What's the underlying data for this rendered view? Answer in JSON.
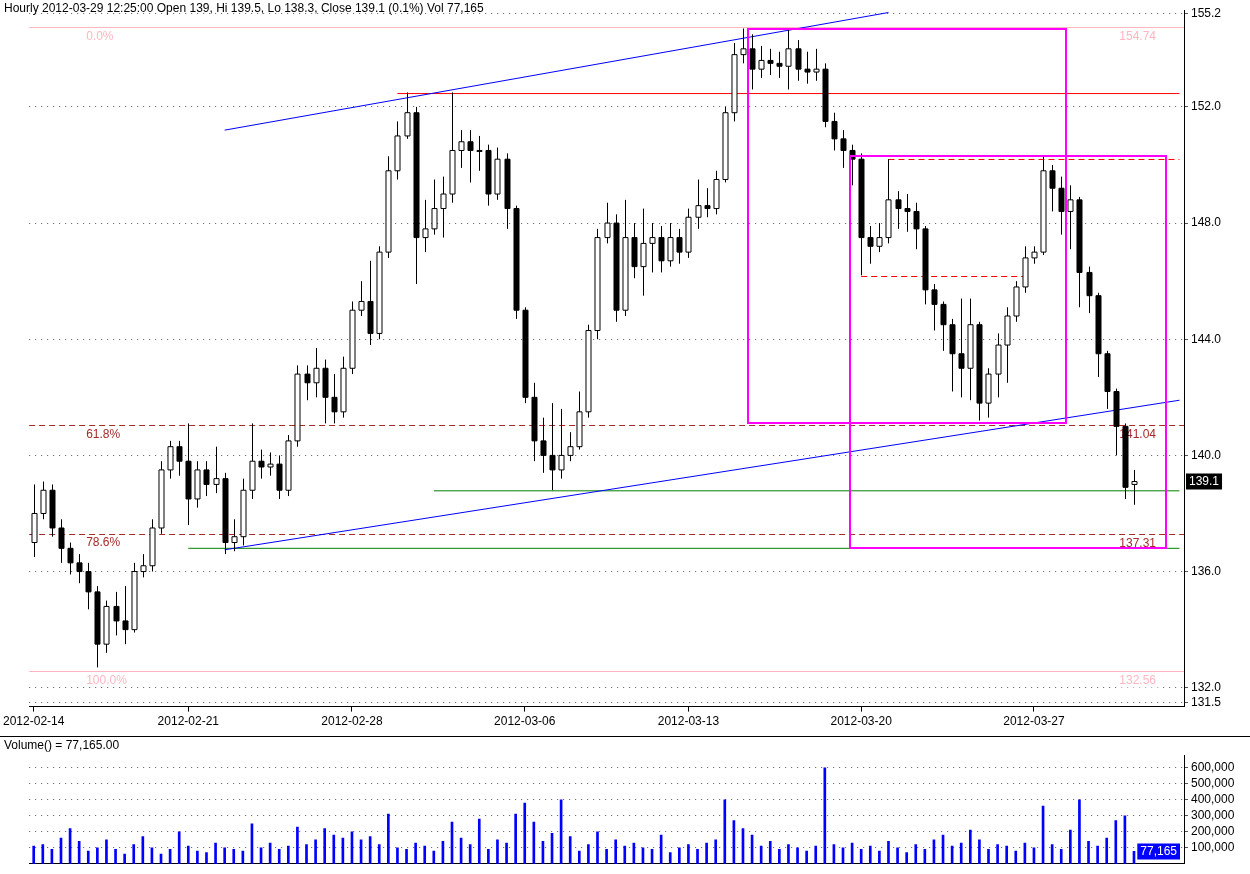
{
  "chart_data": [
    {
      "type": "candlestick",
      "title": "Hourly 2012-03-29 12:25:00 Open 139, Hi 139.5, Lo 138.3, Close 139.1 (0.1%) Vol 77,165",
      "categories": [
        "2012-02-14",
        null,
        null,
        null,
        null,
        null,
        null,
        null,
        null,
        null,
        null,
        null,
        null,
        null,
        null,
        null,
        null,
        "2012-02-21",
        null,
        null,
        null,
        null,
        null,
        null,
        null,
        null,
        null,
        null,
        null,
        null,
        null,
        null,
        null,
        null,
        null,
        "2012-02-28",
        null,
        null,
        null,
        null,
        null,
        null,
        null,
        null,
        null,
        null,
        null,
        null,
        null,
        null,
        null,
        null,
        null,
        null,
        "2012-03-06",
        null,
        null,
        null,
        null,
        null,
        null,
        null,
        null,
        null,
        null,
        null,
        null,
        null,
        null,
        null,
        null,
        null,
        "2012-03-13",
        null,
        null,
        null,
        null,
        null,
        null,
        null,
        null,
        null,
        null,
        null,
        null,
        null,
        null,
        null,
        null,
        null,
        null,
        "2012-03-20",
        null,
        null,
        null,
        null,
        null,
        null,
        null,
        null,
        null,
        null,
        null,
        null,
        null,
        null,
        null,
        null,
        null,
        null,
        "2012-03-27",
        null,
        null,
        null,
        null,
        null,
        null,
        null,
        null,
        null,
        null,
        null,
        null,
        null,
        null,
        null,
        null
      ],
      "ohlc": [
        [
          137.0,
          139.0,
          136.5,
          138.0
        ],
        [
          138.0,
          139.1,
          137.8,
          138.8
        ],
        [
          138.8,
          139.0,
          137.2,
          137.5
        ],
        [
          137.5,
          137.8,
          136.3,
          136.8
        ],
        [
          136.8,
          137.0,
          135.9,
          136.3
        ],
        [
          136.3,
          136.6,
          135.6,
          136.0
        ],
        [
          136.0,
          136.3,
          134.7,
          135.3
        ],
        [
          135.3,
          135.5,
          132.7,
          133.5
        ],
        [
          133.5,
          135.0,
          133.2,
          134.8
        ],
        [
          134.8,
          135.3,
          133.8,
          134.3
        ],
        [
          134.3,
          135.5,
          133.5,
          134.0
        ],
        [
          134.0,
          136.3,
          133.9,
          136.0
        ],
        [
          136.0,
          136.6,
          135.8,
          136.2
        ],
        [
          136.2,
          137.8,
          136.0,
          137.5
        ],
        [
          137.5,
          139.8,
          137.3,
          139.5
        ],
        [
          139.5,
          140.5,
          139.2,
          140.3
        ],
        [
          140.3,
          140.5,
          139.3,
          139.8
        ],
        [
          139.8,
          141.1,
          137.6,
          138.5
        ],
        [
          138.5,
          139.8,
          138.2,
          139.5
        ],
        [
          139.5,
          139.8,
          138.6,
          139.0
        ],
        [
          139.0,
          140.3,
          138.7,
          139.2
        ],
        [
          139.2,
          139.4,
          136.6,
          137.0
        ],
        [
          137.0,
          137.8,
          136.7,
          137.2
        ],
        [
          137.2,
          139.2,
          136.9,
          138.8
        ],
        [
          138.8,
          141.1,
          138.5,
          139.8
        ],
        [
          139.8,
          140.2,
          139.2,
          139.6
        ],
        [
          139.6,
          140.1,
          139.3,
          139.7
        ],
        [
          139.7,
          140.0,
          138.5,
          138.8
        ],
        [
          138.8,
          140.7,
          138.6,
          140.5
        ],
        [
          140.5,
          143.1,
          140.3,
          142.8
        ],
        [
          142.8,
          143.1,
          141.9,
          142.5
        ],
        [
          142.5,
          143.7,
          142.0,
          143.0
        ],
        [
          143.0,
          143.3,
          141.1,
          142.0
        ],
        [
          142.0,
          142.8,
          141.1,
          141.5
        ],
        [
          141.5,
          143.4,
          141.3,
          143.0
        ],
        [
          143.0,
          145.3,
          142.8,
          145.0
        ],
        [
          145.0,
          146.0,
          144.8,
          145.3
        ],
        [
          145.3,
          146.7,
          143.8,
          144.2
        ],
        [
          144.2,
          147.2,
          144.0,
          147.0
        ],
        [
          147.0,
          150.3,
          146.8,
          149.8
        ],
        [
          149.8,
          151.5,
          149.5,
          151.0
        ],
        [
          151.0,
          152.5,
          150.9,
          151.8
        ],
        [
          151.8,
          152.0,
          145.9,
          147.5
        ],
        [
          147.5,
          148.8,
          147.0,
          147.8
        ],
        [
          147.8,
          149.5,
          147.6,
          148.5
        ],
        [
          148.5,
          149.6,
          147.5,
          149.0
        ],
        [
          149.0,
          152.5,
          148.7,
          150.5
        ],
        [
          150.5,
          151.2,
          149.9,
          150.8
        ],
        [
          150.8,
          151.2,
          149.4,
          150.5
        ],
        [
          150.5,
          151.0,
          149.8,
          150.5
        ],
        [
          150.5,
          150.7,
          148.6,
          149.0
        ],
        [
          149.0,
          150.6,
          148.8,
          150.2
        ],
        [
          150.2,
          150.4,
          147.8,
          148.5
        ],
        [
          148.5,
          148.6,
          144.7,
          145.0
        ],
        [
          145.0,
          145.1,
          141.8,
          142.0
        ],
        [
          142.0,
          142.5,
          139.8,
          140.5
        ],
        [
          140.5,
          141.3,
          139.4,
          140.0
        ],
        [
          140.0,
          141.8,
          138.8,
          139.5
        ],
        [
          139.5,
          141.6,
          139.2,
          140.0
        ],
        [
          140.0,
          140.8,
          139.8,
          140.3
        ],
        [
          140.3,
          142.2,
          140.2,
          141.5
        ],
        [
          141.5,
          144.5,
          141.3,
          144.3
        ],
        [
          144.3,
          147.8,
          144.0,
          147.5
        ],
        [
          147.5,
          148.7,
          147.3,
          148.0
        ],
        [
          148.0,
          148.3,
          144.6,
          145.0
        ],
        [
          145.0,
          148.8,
          144.8,
          147.5
        ],
        [
          147.5,
          148.0,
          146.1,
          146.5
        ],
        [
          146.5,
          148.5,
          145.5,
          147.3
        ],
        [
          147.3,
          148.0,
          146.3,
          147.5
        ],
        [
          147.5,
          147.9,
          146.3,
          146.7
        ],
        [
          146.7,
          148.0,
          146.5,
          147.5
        ],
        [
          147.5,
          147.8,
          146.6,
          147.0
        ],
        [
          147.0,
          148.5,
          146.8,
          148.2
        ],
        [
          148.2,
          149.5,
          147.8,
          148.6
        ],
        [
          148.6,
          149.2,
          148.2,
          148.5
        ],
        [
          148.5,
          149.8,
          148.3,
          149.5
        ],
        [
          149.5,
          152.0,
          149.4,
          151.8
        ],
        [
          151.8,
          154.2,
          151.5,
          153.8
        ],
        [
          153.8,
          154.7,
          153.5,
          154.0
        ],
        [
          154.0,
          154.5,
          152.6,
          153.3
        ],
        [
          153.3,
          154.1,
          153.0,
          153.6
        ],
        [
          153.6,
          154.0,
          153.1,
          153.5
        ],
        [
          153.5,
          153.9,
          153.0,
          153.4
        ],
        [
          153.4,
          154.7,
          152.6,
          154.0
        ],
        [
          154.0,
          154.3,
          152.9,
          153.3
        ],
        [
          153.3,
          153.9,
          152.8,
          153.2
        ],
        [
          153.2,
          154.0,
          152.9,
          153.3
        ],
        [
          153.3,
          153.5,
          151.3,
          151.5
        ],
        [
          151.5,
          151.8,
          150.5,
          150.9
        ],
        [
          150.9,
          151.2,
          149.9,
          150.5
        ],
        [
          150.5,
          150.7,
          149.3,
          150.2
        ],
        [
          150.2,
          150.4,
          146.2,
          147.5
        ],
        [
          147.5,
          147.9,
          146.6,
          147.2
        ],
        [
          147.2,
          148.0,
          147.0,
          147.5
        ],
        [
          147.5,
          150.2,
          147.3,
          148.8
        ],
        [
          148.8,
          149.1,
          147.8,
          148.5
        ],
        [
          148.5,
          149.0,
          147.7,
          148.4
        ],
        [
          148.4,
          148.7,
          147.1,
          147.8
        ],
        [
          147.8,
          147.9,
          145.2,
          145.7
        ],
        [
          145.7,
          145.9,
          144.3,
          145.2
        ],
        [
          145.2,
          145.3,
          143.6,
          144.5
        ],
        [
          144.5,
          144.7,
          142.2,
          143.5
        ],
        [
          143.5,
          145.4,
          142.0,
          143.0
        ],
        [
          143.0,
          145.4,
          141.9,
          144.5
        ],
        [
          144.5,
          144.6,
          141.2,
          141.8
        ],
        [
          141.8,
          143.0,
          141.3,
          142.8
        ],
        [
          142.8,
          144.2,
          142.0,
          143.8
        ],
        [
          143.8,
          145.1,
          142.5,
          144.8
        ],
        [
          144.8,
          146.0,
          144.6,
          145.8
        ],
        [
          145.8,
          147.2,
          145.6,
          146.8
        ],
        [
          146.8,
          147.2,
          146.6,
          147.0
        ],
        [
          147.0,
          150.3,
          146.9,
          149.8
        ],
        [
          149.8,
          150.0,
          148.4,
          149.2
        ],
        [
          149.2,
          149.6,
          147.6,
          148.4
        ],
        [
          148.4,
          149.3,
          147.1,
          148.8
        ],
        [
          148.8,
          148.9,
          145.1,
          146.3
        ],
        [
          146.3,
          146.5,
          144.9,
          145.5
        ],
        [
          145.5,
          145.6,
          142.7,
          143.5
        ],
        [
          143.5,
          143.6,
          141.6,
          142.2
        ],
        [
          142.2,
          142.3,
          140.0,
          141.0
        ],
        [
          141.0,
          141.1,
          138.5,
          138.9
        ],
        [
          139.0,
          139.5,
          138.3,
          139.1
        ],
        null,
        null,
        null,
        null,
        null
      ],
      "series": [
        {
          "type": "line",
          "color": "#0000ff",
          "values": [
            null,
            null,
            null,
            null,
            null,
            null,
            null,
            null,
            null,
            null,
            null,
            null,
            null,
            null,
            null,
            null,
            null,
            null,
            null,
            null,
            null,
            151.2,
            null,
            null,
            null,
            null,
            null,
            null,
            null,
            null,
            null,
            null,
            null,
            null,
            null,
            null,
            null,
            null,
            null,
            null,
            null,
            null,
            null,
            null,
            null,
            null,
            null,
            null,
            null,
            null,
            null,
            null,
            null,
            null,
            null,
            null,
            null,
            null,
            null,
            null,
            null,
            null,
            null,
            null,
            null,
            null,
            null,
            null,
            null,
            null,
            null,
            null,
            null,
            null,
            null,
            null,
            null,
            null,
            null,
            null,
            null,
            null,
            null,
            null,
            null,
            null,
            null,
            null,
            null,
            null,
            null,
            null,
            null,
            null,
            155.25,
            null,
            null,
            null,
            null,
            null,
            null,
            null,
            null,
            null,
            null,
            null,
            null,
            null,
            null,
            null,
            null,
            null,
            null,
            null,
            null,
            null,
            null,
            null,
            null,
            null,
            null,
            null,
            null,
            null,
            null,
            null,
            null
          ]
        },
        {
          "type": "line",
          "color": "#0000ff",
          "values": [
            null,
            null,
            null,
            null,
            null,
            null,
            null,
            null,
            null,
            null,
            null,
            null,
            null,
            null,
            null,
            null,
            null,
            null,
            null,
            null,
            null,
            136.75,
            null,
            null,
            null,
            null,
            null,
            null,
            null,
            null,
            null,
            null,
            null,
            null,
            null,
            null,
            null,
            null,
            null,
            null,
            null,
            null,
            null,
            null,
            null,
            null,
            null,
            null,
            null,
            null,
            null,
            null,
            null,
            null,
            null,
            null,
            null,
            null,
            null,
            null,
            null,
            null,
            null,
            null,
            null,
            null,
            null,
            null,
            null,
            null,
            null,
            null,
            null,
            null,
            null,
            null,
            null,
            null,
            null,
            null,
            null,
            null,
            null,
            null,
            null,
            null,
            null,
            null,
            null,
            null,
            null,
            null,
            null,
            null,
            null,
            null,
            null,
            null,
            null,
            null,
            null,
            null,
            null,
            null,
            null,
            null,
            null,
            null,
            null,
            null,
            null,
            null,
            null,
            null,
            null,
            null,
            null,
            null,
            null,
            null,
            null,
            null,
            null,
            null,
            null,
            null,
            141.9
          ]
        },
        {
          "type": "line",
          "color": "#ff0000",
          "values": [
            null,
            null,
            null,
            null,
            null,
            null,
            null,
            null,
            null,
            null,
            null,
            null,
            null,
            null,
            null,
            null,
            null,
            null,
            null,
            null,
            null,
            null,
            null,
            null,
            null,
            null,
            null,
            null,
            null,
            null,
            null,
            null,
            null,
            null,
            null,
            null,
            null,
            null,
            null,
            null,
            152.46,
            null,
            null,
            null,
            null,
            null,
            null,
            null,
            null,
            null,
            null,
            null,
            null,
            null,
            null,
            null,
            null,
            null,
            null,
            null,
            null,
            null,
            null,
            null,
            null,
            null,
            null,
            null,
            null,
            null,
            null,
            null,
            null,
            null,
            null,
            null,
            null,
            null,
            null,
            null,
            null,
            null,
            null,
            null,
            null,
            null,
            null,
            null,
            null,
            null,
            null,
            null,
            null,
            null,
            null,
            null,
            null,
            null,
            null,
            null,
            null,
            null,
            null,
            null,
            null,
            null,
            null,
            null,
            null,
            null,
            null,
            null,
            null,
            null,
            null,
            null,
            null,
            null,
            null,
            null,
            null,
            null,
            null,
            null,
            null,
            null,
            152.46
          ]
        },
        {
          "type": "line",
          "color": "#008000",
          "values": [
            null,
            null,
            null,
            null,
            null,
            null,
            null,
            null,
            null,
            null,
            null,
            null,
            null,
            null,
            null,
            null,
            null,
            null,
            null,
            null,
            null,
            null,
            null,
            null,
            null,
            null,
            null,
            null,
            null,
            null,
            null,
            null,
            null,
            null,
            null,
            null,
            null,
            null,
            null,
            null,
            null,
            null,
            null,
            null,
            138.78,
            null,
            null,
            null,
            null,
            null,
            null,
            null,
            null,
            null,
            null,
            null,
            null,
            null,
            null,
            null,
            null,
            null,
            null,
            null,
            null,
            null,
            null,
            null,
            null,
            null,
            null,
            null,
            null,
            null,
            null,
            null,
            null,
            null,
            null,
            null,
            null,
            null,
            null,
            null,
            null,
            null,
            null,
            null,
            null,
            null,
            null,
            null,
            null,
            null,
            null,
            null,
            null,
            null,
            null,
            null,
            null,
            null,
            null,
            null,
            null,
            null,
            null,
            null,
            null,
            null,
            null,
            null,
            null,
            null,
            null,
            null,
            null,
            null,
            null,
            null,
            null,
            null,
            null,
            null,
            null,
            null,
            138.78
          ]
        },
        {
          "type": "line",
          "color": "#008000",
          "values": [
            null,
            null,
            null,
            null,
            null,
            null,
            null,
            null,
            null,
            null,
            null,
            null,
            null,
            null,
            null,
            null,
            null,
            136.8,
            null,
            null,
            null,
            null,
            null,
            null,
            null,
            null,
            null,
            null,
            null,
            null,
            null,
            null,
            null,
            null,
            null,
            null,
            null,
            null,
            null,
            null,
            null,
            null,
            null,
            null,
            null,
            null,
            null,
            null,
            null,
            null,
            null,
            null,
            null,
            null,
            null,
            null,
            null,
            null,
            null,
            null,
            null,
            null,
            null,
            null,
            null,
            null,
            null,
            null,
            null,
            null,
            null,
            null,
            null,
            null,
            null,
            null,
            null,
            null,
            null,
            null,
            null,
            null,
            null,
            null,
            null,
            null,
            null,
            null,
            null,
            null,
            null,
            null,
            null,
            null,
            null,
            null,
            null,
            null,
            null,
            null,
            null,
            null,
            null,
            null,
            null,
            null,
            null,
            null,
            null,
            null,
            null,
            null,
            null,
            null,
            null,
            null,
            null,
            null,
            null,
            null,
            null,
            null,
            null,
            null,
            null,
            null,
            136.8
          ]
        },
        {
          "type": "line",
          "color": "#ff0000",
          "line_style": "dashed",
          "values": [
            null,
            null,
            null,
            null,
            null,
            null,
            null,
            null,
            null,
            null,
            null,
            null,
            null,
            null,
            null,
            null,
            null,
            null,
            null,
            null,
            null,
            null,
            null,
            null,
            null,
            null,
            null,
            null,
            null,
            null,
            null,
            null,
            null,
            null,
            null,
            null,
            null,
            null,
            null,
            null,
            null,
            null,
            null,
            null,
            null,
            null,
            null,
            null,
            null,
            null,
            null,
            null,
            null,
            null,
            null,
            null,
            null,
            null,
            null,
            null,
            null,
            null,
            null,
            null,
            null,
            null,
            null,
            null,
            null,
            null,
            null,
            null,
            null,
            null,
            null,
            null,
            null,
            null,
            null,
            null,
            null,
            null,
            null,
            null,
            null,
            null,
            null,
            null,
            null,
            null,
            null,
            null,
            null,
            null,
            150.19,
            null,
            null,
            null,
            null,
            null,
            null,
            null,
            null,
            null,
            null,
            null,
            null,
            null,
            null,
            null,
            null,
            null,
            null,
            null,
            null,
            null,
            null,
            null,
            null,
            null,
            null,
            null,
            null,
            null,
            null,
            null,
            150.19
          ]
        },
        {
          "type": "line",
          "color": "#ff0000",
          "line_style": "dashed",
          "values": [
            null,
            null,
            null,
            null,
            null,
            null,
            null,
            null,
            null,
            null,
            null,
            null,
            null,
            null,
            null,
            null,
            null,
            null,
            null,
            null,
            null,
            null,
            null,
            null,
            null,
            null,
            null,
            null,
            null,
            null,
            null,
            null,
            null,
            null,
            null,
            null,
            null,
            null,
            null,
            null,
            null,
            null,
            null,
            null,
            null,
            null,
            null,
            null,
            null,
            null,
            null,
            null,
            null,
            null,
            null,
            null,
            null,
            null,
            null,
            null,
            null,
            null,
            null,
            null,
            null,
            null,
            null,
            null,
            null,
            null,
            null,
            null,
            null,
            null,
            null,
            null,
            null,
            null,
            null,
            null,
            null,
            null,
            null,
            null,
            null,
            null,
            null,
            null,
            null,
            null,
            null,
            146.16,
            null,
            null,
            null,
            null,
            null,
            null,
            null,
            null,
            null,
            null,
            null,
            null,
            null,
            null,
            null,
            null,
            null,
            146.16,
            null,
            null,
            null,
            null,
            null,
            null,
            null,
            null,
            null,
            null,
            null,
            null,
            null,
            null,
            null,
            null,
            null
          ]
        }
      ],
      "ref_lines": [
        {
          "axis": "y",
          "value": 154.74,
          "label": "154.74",
          "color": "#ffb6c1"
        },
        {
          "axis": "y",
          "value": 141.04,
          "label": "141.04",
          "color": "#a52a2a",
          "line_style": "dashed"
        },
        {
          "axis": "y",
          "value": 137.31,
          "label": "137.31",
          "color": "#a52a2a",
          "line_style": "dashed"
        },
        {
          "axis": "y",
          "value": 132.56,
          "label": "132.56",
          "color": "#ffb6c1"
        }
      ],
      "annotations": [
        {
          "text": "0.0%",
          "y": 154.74
        },
        {
          "text": "61.8%",
          "y": 141.04
        },
        {
          "text": "78.6%",
          "y": 137.31
        },
        {
          "text": "100.0%",
          "y": 132.56
        },
        {
          "text": "139.1",
          "y": 139.1
        }
      ],
      "ylim": [
        131.35,
        155.33
      ],
      "yticks": [
        131.5,
        {
          "value": 132,
          "label": "132.0"
        },
        {
          "value": 136,
          "label": "136.0"
        },
        {
          "value": 140,
          "label": "140.0"
        },
        {
          "value": 144,
          "label": "144.0"
        },
        {
          "value": 148,
          "label": "148.0"
        },
        {
          "value": 152,
          "label": "152.0"
        },
        155.2
      ],
      "grid": "y",
      "legend": false,
      "marker": "none"
    },
    {
      "type": "bar",
      "title": "Volume() = 77,165.00",
      "color": "#0000ff",
      "values": [
        110000,
        120000,
        90000,
        160000,
        220000,
        140000,
        80000,
        100000,
        150000,
        90000,
        60000,
        120000,
        170000,
        100000,
        60000,
        90000,
        200000,
        110000,
        80000,
        70000,
        130000,
        100000,
        90000,
        80000,
        250000,
        100000,
        130000,
        90000,
        110000,
        230000,
        120000,
        150000,
        220000,
        180000,
        160000,
        200000,
        150000,
        170000,
        120000,
        310000,
        100000,
        90000,
        130000,
        110000,
        80000,
        140000,
        260000,
        160000,
        120000,
        280000,
        90000,
        150000,
        130000,
        310000,
        380000,
        260000,
        140000,
        190000,
        400000,
        170000,
        80000,
        120000,
        200000,
        90000,
        150000,
        110000,
        130000,
        100000,
        90000,
        180000,
        70000,
        100000,
        120000,
        90000,
        130000,
        150000,
        400000,
        270000,
        220000,
        180000,
        110000,
        140000,
        90000,
        120000,
        100000,
        80000,
        110000,
        600000,
        120000,
        100000,
        130000,
        90000,
        110000,
        80000,
        140000,
        100000,
        70000,
        120000,
        90000,
        150000,
        180000,
        110000,
        130000,
        210000,
        150000,
        90000,
        120000,
        110000,
        80000,
        130000,
        100000,
        360000,
        120000,
        90000,
        210000,
        400000,
        140000,
        110000,
        160000,
        270000,
        300000,
        77165,
        null,
        null,
        null,
        null,
        null
      ],
      "categories": [
        "2012-02-14",
        null,
        null,
        null,
        null,
        null,
        null,
        null,
        null,
        null,
        null,
        null,
        null,
        null,
        null,
        null,
        null,
        "2012-02-21",
        null,
        null,
        null,
        null,
        null,
        null,
        null,
        null,
        null,
        null,
        null,
        null,
        null,
        null,
        null,
        null,
        null,
        "2012-02-28",
        null,
        null,
        null,
        null,
        null,
        null,
        null,
        null,
        null,
        null,
        null,
        null,
        null,
        null,
        null,
        null,
        null,
        null,
        "2012-03-06",
        null,
        null,
        null,
        null,
        null,
        null,
        null,
        null,
        null,
        null,
        null,
        null,
        null,
        null,
        null,
        null,
        null,
        "2012-03-13",
        null,
        null,
        null,
        null,
        null,
        null,
        null,
        null,
        null,
        null,
        null,
        null,
        null,
        null,
        null,
        null,
        null,
        null,
        "2012-03-20",
        null,
        null,
        null,
        null,
        null,
        null,
        null,
        null,
        null,
        null,
        null,
        null,
        null,
        null,
        null,
        null,
        null,
        null,
        "2012-03-27",
        null,
        null,
        null,
        null,
        null,
        null,
        null,
        null,
        null,
        null,
        null,
        null,
        null,
        null,
        null,
        null
      ],
      "annotations": [
        {
          "text": "77,165",
          "y": 77165
        }
      ],
      "ylim": [
        0,
        680000
      ],
      "yticks": [
        {
          "value": 100000,
          "label": "100,000"
        },
        {
          "value": 200000,
          "label": "200,000"
        },
        {
          "value": 300000,
          "label": "300,000"
        },
        {
          "value": 400000,
          "label": "400,000"
        },
        {
          "value": 500000,
          "label": "500,000"
        },
        {
          "value": 600000,
          "label": "600,000"
        }
      ],
      "grid": "y",
      "legend": false,
      "tick_labels": "y"
    }
  ]
}
